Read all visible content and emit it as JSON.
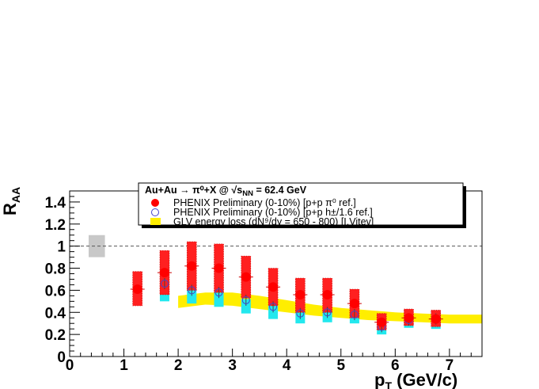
{
  "chart_data": {
    "type": "scatter",
    "xlabel": "p",
    "xlabel_sub": "T",
    "xlabel_unit": " (GeV/c)",
    "ylabel": "R",
    "ylabel_sub": "AA",
    "xlim": [
      0,
      7.6
    ],
    "ylim": [
      0,
      1.5
    ],
    "x_ticks": [
      0,
      1,
      2,
      3,
      4,
      5,
      6,
      7
    ],
    "y_ticks": [
      0,
      0.2,
      0.4,
      0.6,
      0.8,
      1,
      1.2,
      1.4
    ],
    "y_tick_labels": [
      "0",
      "0.2",
      "0.4",
      "0.6",
      "0.8",
      "1",
      "1.2",
      "1.4"
    ],
    "x_tick_labels": [
      "0",
      "1",
      "2",
      "3",
      "4",
      "5",
      "6",
      "7"
    ],
    "reference_line": 1.0,
    "global_uncertainty_box": {
      "x": [
        0.35,
        0.65
      ],
      "y": [
        0.9,
        1.1
      ],
      "color": "#c8c8c8"
    },
    "legend": {
      "title": "Au+Au → π⁰+X @ √s",
      "title_sub": "NN",
      "title_tail": " = 62.4 GeV",
      "entries": [
        {
          "label": "PHENIX Preliminary (0-10%)  [p+p π⁰ ref.]",
          "marker": "filled-circle",
          "color": "#ff0000"
        },
        {
          "label": "PHENIX Preliminary (0-10%)  [p+p h±/1.6 ref.]",
          "marker": "open-circle",
          "color": "#4444cc"
        },
        {
          "label": "GLV energy loss (dN⁹/dy = 650 - 800) [I.Vitev]",
          "marker": "band",
          "color": "#ffee00"
        }
      ]
    },
    "series": [
      {
        "name": "PHENIX Preliminary (0-10%)  [p+p π⁰ ref.]",
        "marker": "filled-circle",
        "color": "#ff0000",
        "sys_color": "#ff2020",
        "x": [
          1.25,
          1.75,
          2.25,
          2.75,
          3.25,
          3.75,
          4.25,
          4.75,
          5.25,
          5.75,
          6.25,
          6.75
        ],
        "y": [
          0.61,
          0.76,
          0.82,
          0.8,
          0.72,
          0.63,
          0.56,
          0.56,
          0.48,
          0.31,
          0.35,
          0.34
        ],
        "sys_low": [
          0.46,
          0.56,
          0.6,
          0.58,
          0.53,
          0.46,
          0.4,
          0.4,
          0.35,
          0.24,
          0.28,
          0.27
        ],
        "sys_high": [
          0.77,
          0.96,
          1.04,
          1.02,
          0.91,
          0.8,
          0.71,
          0.71,
          0.61,
          0.39,
          0.43,
          0.42
        ]
      },
      {
        "name": "PHENIX Preliminary (0-10%)  [p+p h±/1.6 ref.]",
        "marker": "open-circle",
        "color": "#4444cc",
        "sys_color": "#22e8ee",
        "x": [
          1.75,
          2.25,
          2.75,
          3.25,
          3.75,
          4.25,
          4.75,
          5.25,
          5.75,
          6.25,
          6.75
        ],
        "y": [
          0.66,
          0.6,
          0.58,
          0.51,
          0.45,
          0.39,
          0.4,
          0.38,
          0.27,
          0.33,
          0.34
        ],
        "sys_low": [
          0.5,
          0.48,
          0.45,
          0.39,
          0.34,
          0.3,
          0.31,
          0.3,
          0.2,
          0.26,
          0.25
        ],
        "sys_high": [
          0.56,
          0.61,
          0.58,
          0.52,
          0.46,
          0.4,
          0.42,
          0.39,
          0.27,
          0.34,
          0.41
        ]
      },
      {
        "name": "GLV energy loss (dN⁹/dy = 650 - 800) [I.Vitev]",
        "type": "band",
        "color": "#ffee00",
        "x": [
          2.0,
          2.5,
          3.0,
          3.5,
          4.0,
          4.5,
          5.0,
          5.5,
          6.0,
          6.5,
          7.0,
          7.6
        ],
        "low": [
          0.44,
          0.47,
          0.46,
          0.43,
          0.4,
          0.37,
          0.35,
          0.33,
          0.32,
          0.31,
          0.3,
          0.3
        ],
        "high": [
          0.55,
          0.58,
          0.58,
          0.55,
          0.51,
          0.47,
          0.44,
          0.42,
          0.4,
          0.39,
          0.38,
          0.38
        ]
      }
    ]
  }
}
